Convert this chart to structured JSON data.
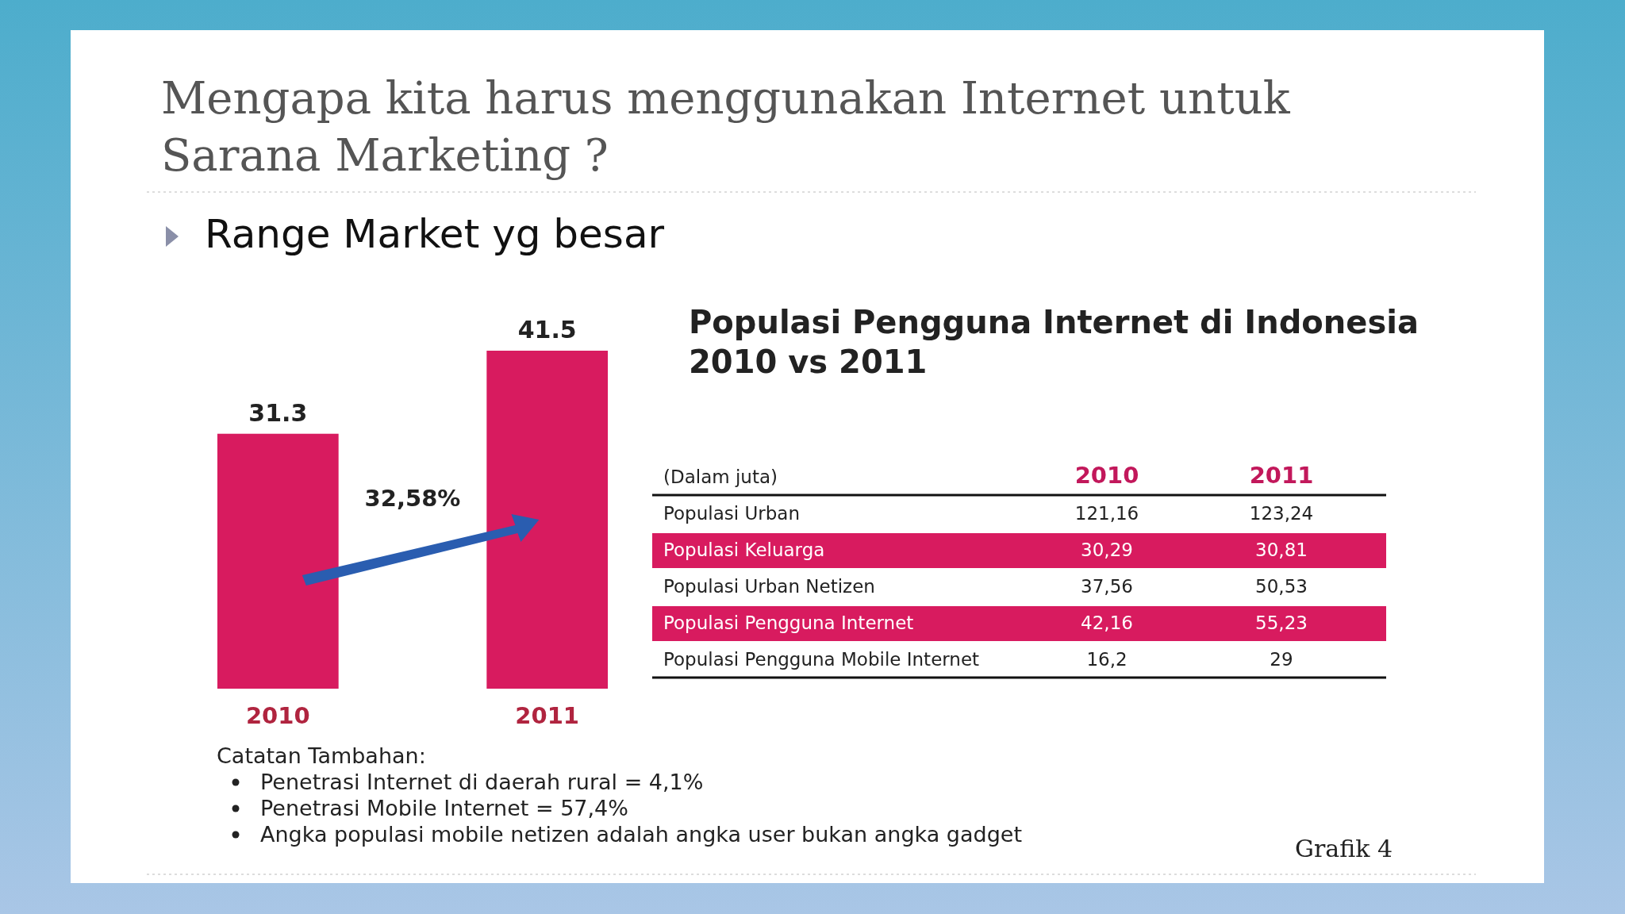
{
  "chart_data": [
    {
      "type": "bar",
      "title": "Mengapa kita harus menggunakan Internet untuk Sarana Marketing ?",
      "subtitle": "Range Market yg besar",
      "categories": [
        "2010",
        "2011"
      ],
      "values": [
        31.3,
        41.5
      ],
      "color": "#d81b5f",
      "data_labels": true,
      "annotations": [
        "32,58%"
      ]
    },
    {
      "type": "other",
      "title": "Populasi Pengguna Internet di Indonesia 2010 vs 2011",
      "ylabel": "(Dalam juta)",
      "categories": [
        "2010",
        "2011"
      ],
      "y_categories": [
        "Populasi Urban",
        "Populasi Keluarga",
        "Populasi Urban Netizen",
        "Populasi  Pengguna Internet",
        "Populasi Pengguna Mobile Internet"
      ],
      "cell_labels": [
        [
          "121,16",
          "123,24"
        ],
        [
          "30,29",
          "30,81"
        ],
        [
          "37,56",
          "50,53"
        ],
        [
          "42,16",
          "55,23"
        ],
        [
          "16,2",
          "29"
        ]
      ],
      "colors": [
        null,
        "#d81b5f",
        null,
        "#d81b5f",
        null
      ],
      "annotations": [
        "Catatan Tambahan:",
        "Penetrasi Internet di daerah rural = 4,1%",
        "Penetrasi Mobile Internet = 57,4%",
        "Angka populasi mobile netizen adalah angka user bukan angka gadget",
        "Grafik 4"
      ]
    }
  ]
}
